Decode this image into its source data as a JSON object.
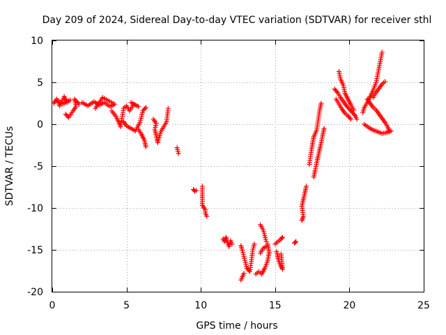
{
  "chart_data": {
    "type": "scatter",
    "title": "Day 209 of 2024, Sidereal Day-to-day VTEC variation (SDTVAR) for receiver sthl",
    "xlabel": "GPS time / hours",
    "ylabel": "SDTVAR / TECUs",
    "xlim": [
      0,
      25
    ],
    "ylim": [
      -20,
      10
    ],
    "xticks": [
      0,
      5,
      10,
      15,
      20,
      25
    ],
    "yticks": [
      -20,
      -15,
      -10,
      -5,
      0,
      5,
      10
    ],
    "grid": true,
    "marker": "+",
    "color": "#ff0000",
    "series": [
      {
        "name": "SDTVAR",
        "segments": [
          [
            [
              0.1,
              2.5
            ],
            [
              0.3,
              3.0
            ],
            [
              0.5,
              2.2
            ],
            [
              0.8,
              3.3
            ],
            [
              1.0,
              2.6
            ],
            [
              1.2,
              2.9
            ],
            [
              0.7,
              2.4
            ],
            [
              0.4,
              2.8
            ]
          ],
          [
            [
              0.9,
              1.2
            ],
            [
              1.1,
              0.8
            ],
            [
              1.4,
              1.6
            ],
            [
              1.6,
              2.1
            ],
            [
              1.5,
              3.0
            ],
            [
              1.8,
              2.4
            ]
          ],
          [
            [
              2.0,
              2.6
            ],
            [
              2.4,
              2.2
            ],
            [
              2.8,
              2.7
            ],
            [
              3.2,
              2.3
            ],
            [
              3.5,
              2.6
            ],
            [
              3.9,
              2.1
            ],
            [
              4.2,
              2.4
            ],
            [
              3.4,
              3.2
            ],
            [
              2.9,
              1.9
            ]
          ],
          [
            [
              4.0,
              1.6
            ],
            [
              4.3,
              0.9
            ],
            [
              4.6,
              -0.3
            ],
            [
              4.8,
              1.9
            ],
            [
              5.0,
              2.2
            ],
            [
              5.2,
              1.6
            ],
            [
              5.5,
              2.4
            ],
            [
              5.8,
              2.1
            ],
            [
              5.3,
              2.6
            ]
          ],
          [
            [
              4.8,
              0.3
            ],
            [
              5.0,
              -0.2
            ],
            [
              5.3,
              -0.5
            ],
            [
              5.6,
              -0.8
            ],
            [
              5.9,
              0.2
            ],
            [
              6.1,
              1.6
            ],
            [
              6.3,
              2.0
            ]
          ],
          [
            [
              5.8,
              -0.6
            ],
            [
              6.0,
              -1.2
            ],
            [
              6.2,
              -1.9
            ],
            [
              6.3,
              -2.7
            ]
          ],
          [
            [
              6.8,
              0.6
            ],
            [
              7.0,
              0.1
            ],
            [
              6.9,
              -0.6
            ],
            [
              7.0,
              -1.4
            ],
            [
              7.1,
              -2.2
            ],
            [
              7.3,
              -0.9
            ],
            [
              7.5,
              -0.3
            ],
            [
              7.7,
              0.3
            ],
            [
              7.8,
              1.9
            ]
          ],
          [
            [
              8.4,
              -2.8
            ],
            [
              8.5,
              -3.5
            ]
          ],
          [
            [
              9.5,
              -7.8
            ],
            [
              9.6,
              -8.0
            ],
            [
              9.7,
              -7.9
            ]
          ],
          [
            [
              10.1,
              -7.4
            ],
            [
              10.1,
              -9.7
            ],
            [
              10.3,
              -10.2
            ],
            [
              10.3,
              -10.6
            ],
            [
              10.4,
              -11.0
            ]
          ],
          [
            [
              11.5,
              -13.7
            ],
            [
              11.6,
              -14.0
            ],
            [
              11.7,
              -13.5
            ],
            [
              11.8,
              -14.1
            ],
            [
              11.9,
              -14.6
            ],
            [
              12.0,
              -13.9
            ],
            [
              12.1,
              -14.3
            ]
          ],
          [
            [
              12.7,
              -14.5
            ],
            [
              12.8,
              -15.1
            ],
            [
              12.9,
              -15.8
            ],
            [
              13.0,
              -16.5
            ],
            [
              13.1,
              -17.2
            ],
            [
              13.3,
              -17.6
            ],
            [
              13.4,
              -16.4
            ],
            [
              13.5,
              -15.0
            ],
            [
              13.6,
              -14.3
            ]
          ],
          [
            [
              12.7,
              -18.6
            ],
            [
              12.8,
              -18.2
            ],
            [
              12.9,
              -17.8
            ]
          ],
          [
            [
              13.7,
              -17.9
            ],
            [
              13.9,
              -17.6
            ],
            [
              14.1,
              -17.9
            ],
            [
              14.3,
              -17.2
            ],
            [
              14.5,
              -16.3
            ],
            [
              14.6,
              -15.3
            ],
            [
              14.5,
              -14.3
            ]
          ],
          [
            [
              14.0,
              -12.0
            ],
            [
              14.2,
              -12.6
            ],
            [
              14.3,
              -13.3
            ],
            [
              14.4,
              -14.0
            ]
          ],
          [
            [
              14.0,
              -15.4
            ],
            [
              14.2,
              -14.8
            ],
            [
              14.4,
              -14.6
            ]
          ],
          [
            [
              15.0,
              -14.3
            ],
            [
              15.2,
              -14.0
            ],
            [
              15.4,
              -13.7
            ],
            [
              15.5,
              -13.5
            ]
          ],
          [
            [
              15.1,
              -15.2
            ],
            [
              15.2,
              -16.0
            ],
            [
              15.3,
              -16.6
            ],
            [
              15.4,
              -17.0
            ],
            [
              15.5,
              -17.3
            ],
            [
              15.4,
              -15.5
            ]
          ],
          [
            [
              16.3,
              -14.2
            ],
            [
              16.4,
              -14.0
            ]
          ],
          [
            [
              16.8,
              -11.5
            ],
            [
              16.9,
              -11.0
            ],
            [
              16.8,
              -9.8
            ],
            [
              16.9,
              -9.0
            ],
            [
              17.0,
              -8.2
            ],
            [
              17.1,
              -7.4
            ]
          ],
          [
            [
              17.3,
              -4.8
            ],
            [
              17.4,
              -3.6
            ],
            [
              17.5,
              -2.5
            ],
            [
              17.6,
              -1.5
            ],
            [
              17.8,
              -0.7
            ],
            [
              17.9,
              0.5
            ],
            [
              18.0,
              1.7
            ],
            [
              18.1,
              2.5
            ]
          ],
          [
            [
              17.6,
              -6.3
            ],
            [
              17.7,
              -5.5
            ],
            [
              17.8,
              -4.6
            ],
            [
              17.9,
              -3.8
            ],
            [
              18.0,
              -3.0
            ],
            [
              18.1,
              -2.2
            ],
            [
              18.2,
              -1.3
            ],
            [
              18.3,
              -0.5
            ]
          ],
          [
            [
              19.0,
              4.2
            ],
            [
              19.2,
              3.8
            ],
            [
              19.4,
              3.2
            ],
            [
              19.6,
              2.7
            ],
            [
              19.8,
              2.2
            ],
            [
              20.0,
              1.8
            ],
            [
              20.2,
              1.4
            ],
            [
              20.4,
              1.0
            ],
            [
              20.5,
              0.6
            ]
          ],
          [
            [
              19.3,
              6.3
            ],
            [
              19.4,
              5.4
            ],
            [
              19.6,
              4.6
            ],
            [
              19.7,
              3.7
            ],
            [
              19.9,
              3.0
            ],
            [
              20.1,
              2.3
            ],
            [
              20.3,
              1.7
            ]
          ],
          [
            [
              19.1,
              3.0
            ],
            [
              19.3,
              2.4
            ],
            [
              19.5,
              1.8
            ],
            [
              19.7,
              1.3
            ],
            [
              19.9,
              1.0
            ],
            [
              20.1,
              0.6
            ]
          ],
          [
            [
              21.2,
              3.0
            ],
            [
              21.4,
              2.5
            ],
            [
              21.6,
              2.0
            ],
            [
              21.8,
              1.7
            ],
            [
              22.0,
              1.2
            ],
            [
              22.2,
              0.7
            ],
            [
              22.4,
              0.2
            ],
            [
              22.6,
              -0.4
            ],
            [
              22.7,
              -0.9
            ]
          ],
          [
            [
              20.9,
              1.4
            ],
            [
              21.0,
              2.0
            ],
            [
              21.2,
              2.6
            ],
            [
              21.4,
              3.3
            ],
            [
              21.6,
              4.1
            ],
            [
              21.8,
              5.0
            ],
            [
              21.9,
              5.9
            ],
            [
              22.0,
              6.8
            ],
            [
              22.1,
              7.7
            ],
            [
              22.2,
              8.6
            ]
          ],
          [
            [
              21.6,
              3.2
            ],
            [
              21.8,
              3.8
            ],
            [
              22.0,
              4.3
            ],
            [
              22.2,
              4.8
            ],
            [
              22.4,
              5.1
            ]
          ],
          [
            [
              21.0,
              0.0
            ],
            [
              21.3,
              -0.4
            ],
            [
              21.6,
              -0.7
            ],
            [
              21.9,
              -0.9
            ],
            [
              22.2,
              -1.1
            ],
            [
              22.5,
              -1.0
            ],
            [
              22.8,
              -0.8
            ]
          ]
        ]
      }
    ]
  }
}
